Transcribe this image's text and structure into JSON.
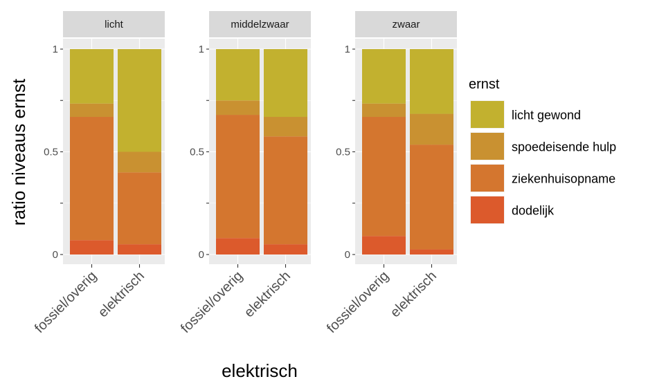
{
  "chart_data": {
    "type": "bar",
    "stacked": true,
    "position": "fill",
    "xlabel": "elektrisch",
    "ylabel": "ratio niveaus ernst",
    "ylim": [
      0,
      1
    ],
    "y_ticks": [
      "0",
      "0.5",
      "1"
    ],
    "categories": [
      "fossiel/overig",
      "elektrisch"
    ],
    "facets": [
      "licht",
      "middelzwaar",
      "zwaar"
    ],
    "legend": {
      "title": "ernst",
      "position": "right",
      "items": [
        {
          "name": "licht gewond",
          "color": "#c2b12f"
        },
        {
          "name": "spoedeisende hulp",
          "color": "#c99131"
        },
        {
          "name": "ziekenhuisopname",
          "color": "#d4762f"
        },
        {
          "name": "dodelijk",
          "color": "#dc5a2c"
        }
      ]
    },
    "series_order_bottom_to_top": [
      "dodelijk",
      "ziekenhuisopname",
      "spoedeisende hulp",
      "licht gewond"
    ],
    "panels": [
      {
        "facet": "licht",
        "bars": [
          {
            "category": "fossiel/overig",
            "values": {
              "dodelijk": 0.07,
              "ziekenhuisopname": 0.6,
              "spoedeisende hulp": 0.065,
              "licht gewond": 0.265
            }
          },
          {
            "category": "elektrisch",
            "values": {
              "dodelijk": 0.05,
              "ziekenhuisopname": 0.35,
              "spoedeisende hulp": 0.1,
              "licht gewond": 0.5
            }
          }
        ]
      },
      {
        "facet": "middelzwaar",
        "bars": [
          {
            "category": "fossiel/overig",
            "values": {
              "dodelijk": 0.08,
              "ziekenhuisopname": 0.6,
              "spoedeisende hulp": 0.07,
              "licht gewond": 0.25
            }
          },
          {
            "category": "elektrisch",
            "values": {
              "dodelijk": 0.05,
              "ziekenhuisopname": 0.525,
              "spoedeisende hulp": 0.095,
              "licht gewond": 0.33
            }
          }
        ]
      },
      {
        "facet": "zwaar",
        "bars": [
          {
            "category": "fossiel/overig",
            "values": {
              "dodelijk": 0.09,
              "ziekenhuisopname": 0.58,
              "spoedeisende hulp": 0.065,
              "licht gewond": 0.265
            }
          },
          {
            "category": "elektrisch",
            "values": {
              "dodelijk": 0.025,
              "ziekenhuisopname": 0.51,
              "spoedeisende hulp": 0.15,
              "licht gewond": 0.315
            }
          }
        ]
      }
    ]
  }
}
